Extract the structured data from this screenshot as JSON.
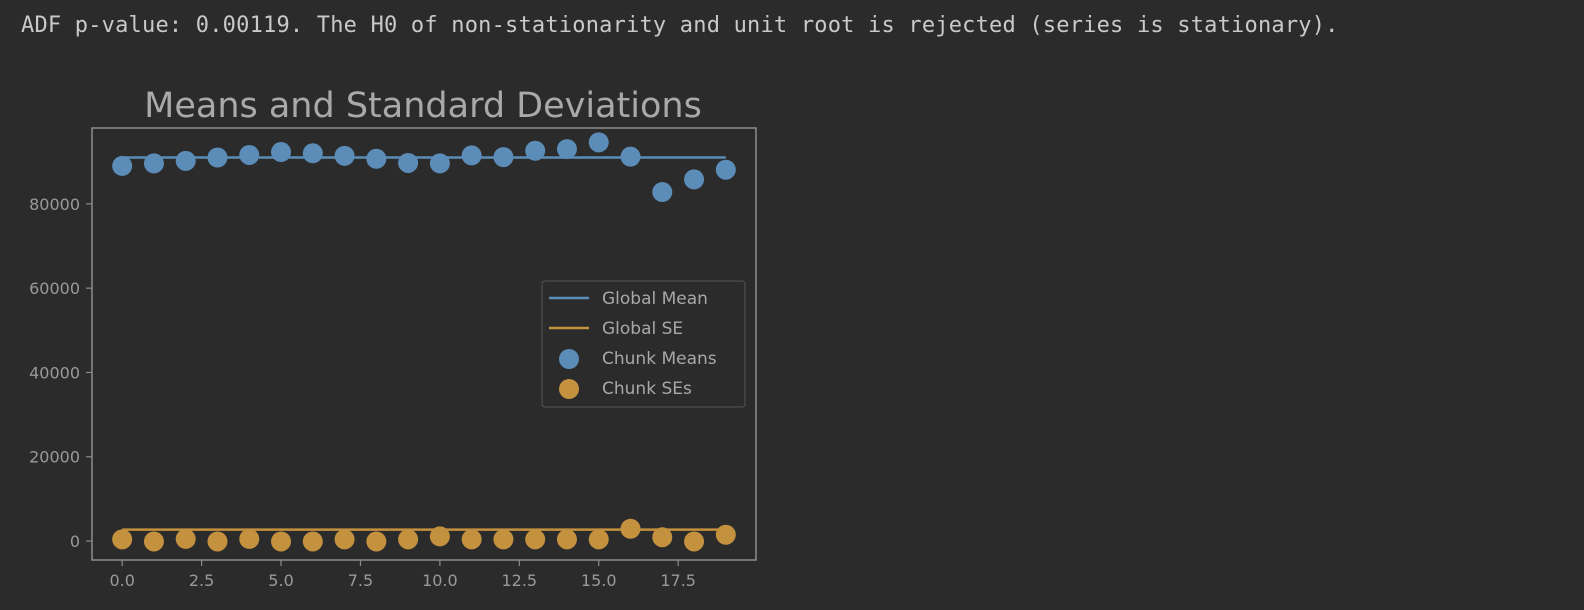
{
  "output": {
    "text": "ADF p-value: 0.00119. The H0 of non-stationarity and unit root is rejected (series is stationary)."
  },
  "colors": {
    "background": "#2b2b2b",
    "axes_frame": "#8c8c8c",
    "mean_color": "#5b8db8",
    "se_color": "#c4913f",
    "text_color": "#a9a9a9"
  },
  "chart_data": {
    "type": "scatter",
    "title": "Means and Standard Deviations",
    "xlabel": "",
    "ylabel": "",
    "xlim": [
      -0.95,
      19.95
    ],
    "ylim": [
      -4500,
      98000
    ],
    "xticks": [
      0.0,
      2.5,
      5.0,
      7.5,
      10.0,
      12.5,
      15.0,
      17.5
    ],
    "xtick_labels": [
      "0.0",
      "2.5",
      "5.0",
      "7.5",
      "10.0",
      "12.5",
      "15.0",
      "17.5"
    ],
    "yticks": [
      0,
      20000,
      40000,
      60000,
      80000
    ],
    "ytick_labels": [
      "0",
      "20000",
      "40000",
      "60000",
      "80000"
    ],
    "grid": false,
    "legend_position": "center-right",
    "lines": [
      {
        "name": "Global Mean",
        "color": "#5b8db8",
        "x": [
          0,
          19
        ],
        "y": [
          91000,
          91000
        ]
      },
      {
        "name": "Global SE",
        "color": "#c4913f",
        "x": [
          0,
          19
        ],
        "y": [
          2700,
          2700
        ]
      }
    ],
    "series": [
      {
        "name": "Chunk Means",
        "color": "#5b8db8",
        "x": [
          0,
          1,
          2,
          3,
          4,
          5,
          6,
          7,
          8,
          9,
          10,
          11,
          12,
          13,
          14,
          15,
          16,
          17,
          18,
          19
        ],
        "y": [
          89000,
          89600,
          90200,
          91000,
          91600,
          92300,
          92000,
          91400,
          90700,
          89700,
          89600,
          91500,
          91100,
          92600,
          93000,
          94600,
          91200,
          82800,
          85800,
          88100
        ]
      },
      {
        "name": "Chunk SEs",
        "color": "#c4913f",
        "x": [
          0,
          1,
          2,
          3,
          4,
          5,
          6,
          7,
          8,
          9,
          10,
          11,
          12,
          13,
          14,
          15,
          16,
          17,
          18,
          19
        ],
        "y": [
          400,
          -100,
          500,
          -100,
          500,
          -100,
          -100,
          400,
          -100,
          400,
          1100,
          400,
          400,
          400,
          400,
          400,
          2900,
          900,
          -100,
          1500
        ]
      }
    ]
  }
}
